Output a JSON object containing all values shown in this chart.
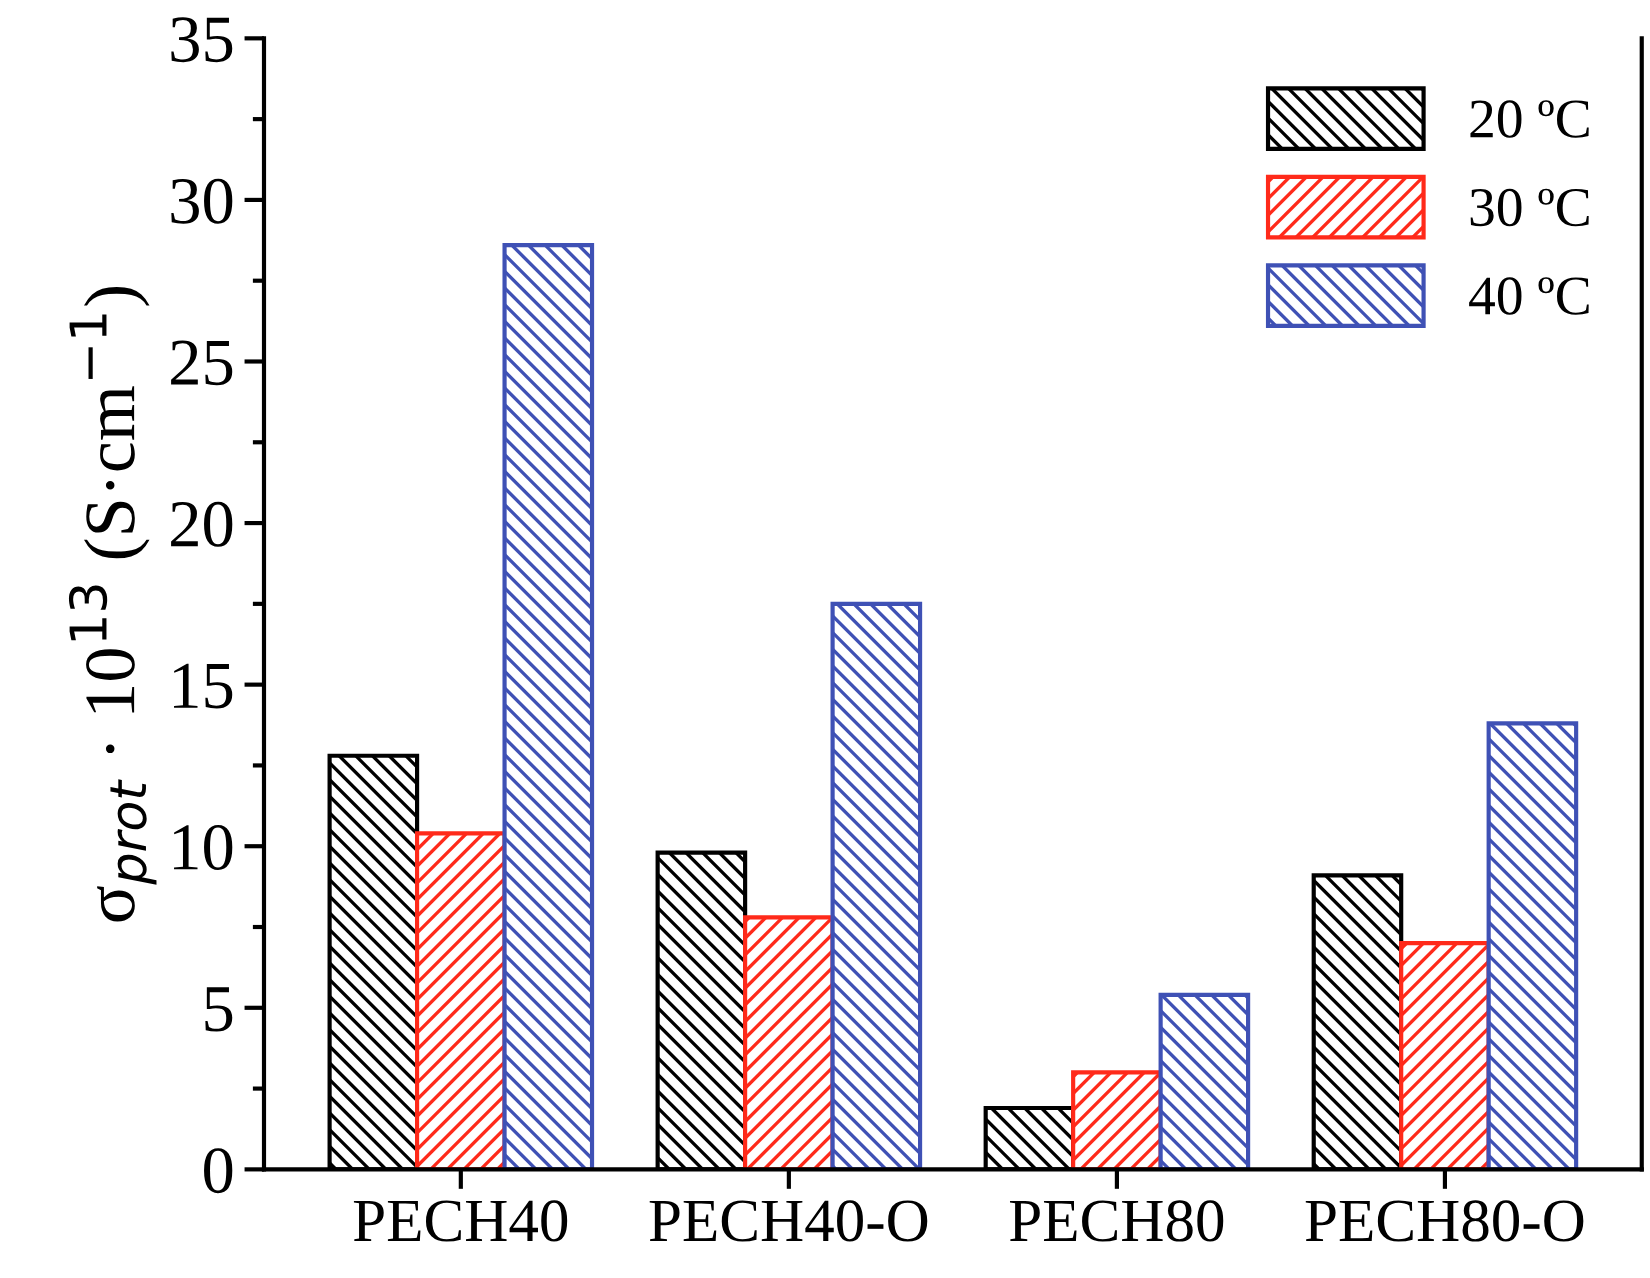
{
  "chart_data": {
    "type": "bar",
    "ylabel": "σ$_{prot}$ · 10$^{13}$ (S·cm$^{−1}$)",
    "categories": [
      "PECH40",
      "PECH40-O",
      "PECH80",
      "PECH80-O"
    ],
    "series": [
      {
        "name": "20 ºC",
        "color": "#000000",
        "values": [
          12.8,
          9.8,
          1.9,
          9.1
        ]
      },
      {
        "name": "30 ºC",
        "color": "#ff2a1a",
        "values": [
          10.4,
          7.8,
          3.0,
          7.0
        ]
      },
      {
        "name": "40 ºC",
        "color": "#3f51b5",
        "values": [
          28.6,
          17.5,
          5.4,
          13.8
        ]
      }
    ],
    "ylim": [
      0,
      35
    ],
    "yticks": [
      0,
      5,
      10,
      15,
      20,
      25,
      30,
      35
    ],
    "grid": false,
    "legend": "top right"
  }
}
